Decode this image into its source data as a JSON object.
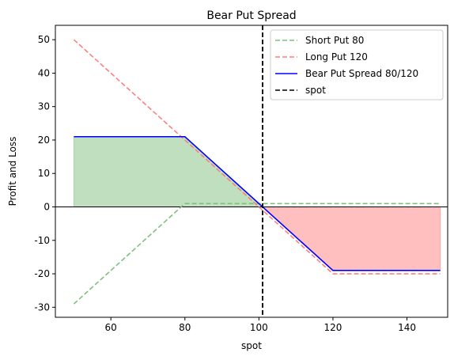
{
  "chart_data": {
    "type": "line",
    "title": "Bear Put Spread",
    "xlabel": "spot",
    "ylabel": "Profit and Loss",
    "xlim": [
      45,
      151
    ],
    "ylim": [
      -33,
      54.3
    ],
    "xticks": [
      60,
      80,
      100,
      120,
      140
    ],
    "yticks": [
      -30,
      -20,
      -10,
      0,
      10,
      20,
      30,
      40,
      50
    ],
    "legend_position": "top-right",
    "series": [
      {
        "name": "Short Put 80",
        "style": "dashed",
        "color": "#7fbf7f",
        "x": [
          50,
          80,
          149
        ],
        "y": [
          -29,
          1,
          1
        ]
      },
      {
        "name": "Long Put 120",
        "style": "dashed",
        "color": "#ff7f7f",
        "x": [
          50,
          120,
          149
        ],
        "y": [
          50,
          -20,
          -20
        ]
      },
      {
        "name": "Bear Put Spread 80/120",
        "style": "solid",
        "color": "#0000ff",
        "x": [
          50,
          80,
          120,
          149
        ],
        "y": [
          21,
          21,
          -19,
          -19
        ]
      },
      {
        "name": "spot",
        "style": "dashed",
        "color": "#000000",
        "vertical_x": 101
      }
    ],
    "fills": [
      {
        "region": "profit",
        "color": "#008000",
        "opacity": 0.25
      },
      {
        "region": "loss",
        "color": "#ff0000",
        "opacity": 0.25
      }
    ],
    "horizontal_line_y": 0
  }
}
